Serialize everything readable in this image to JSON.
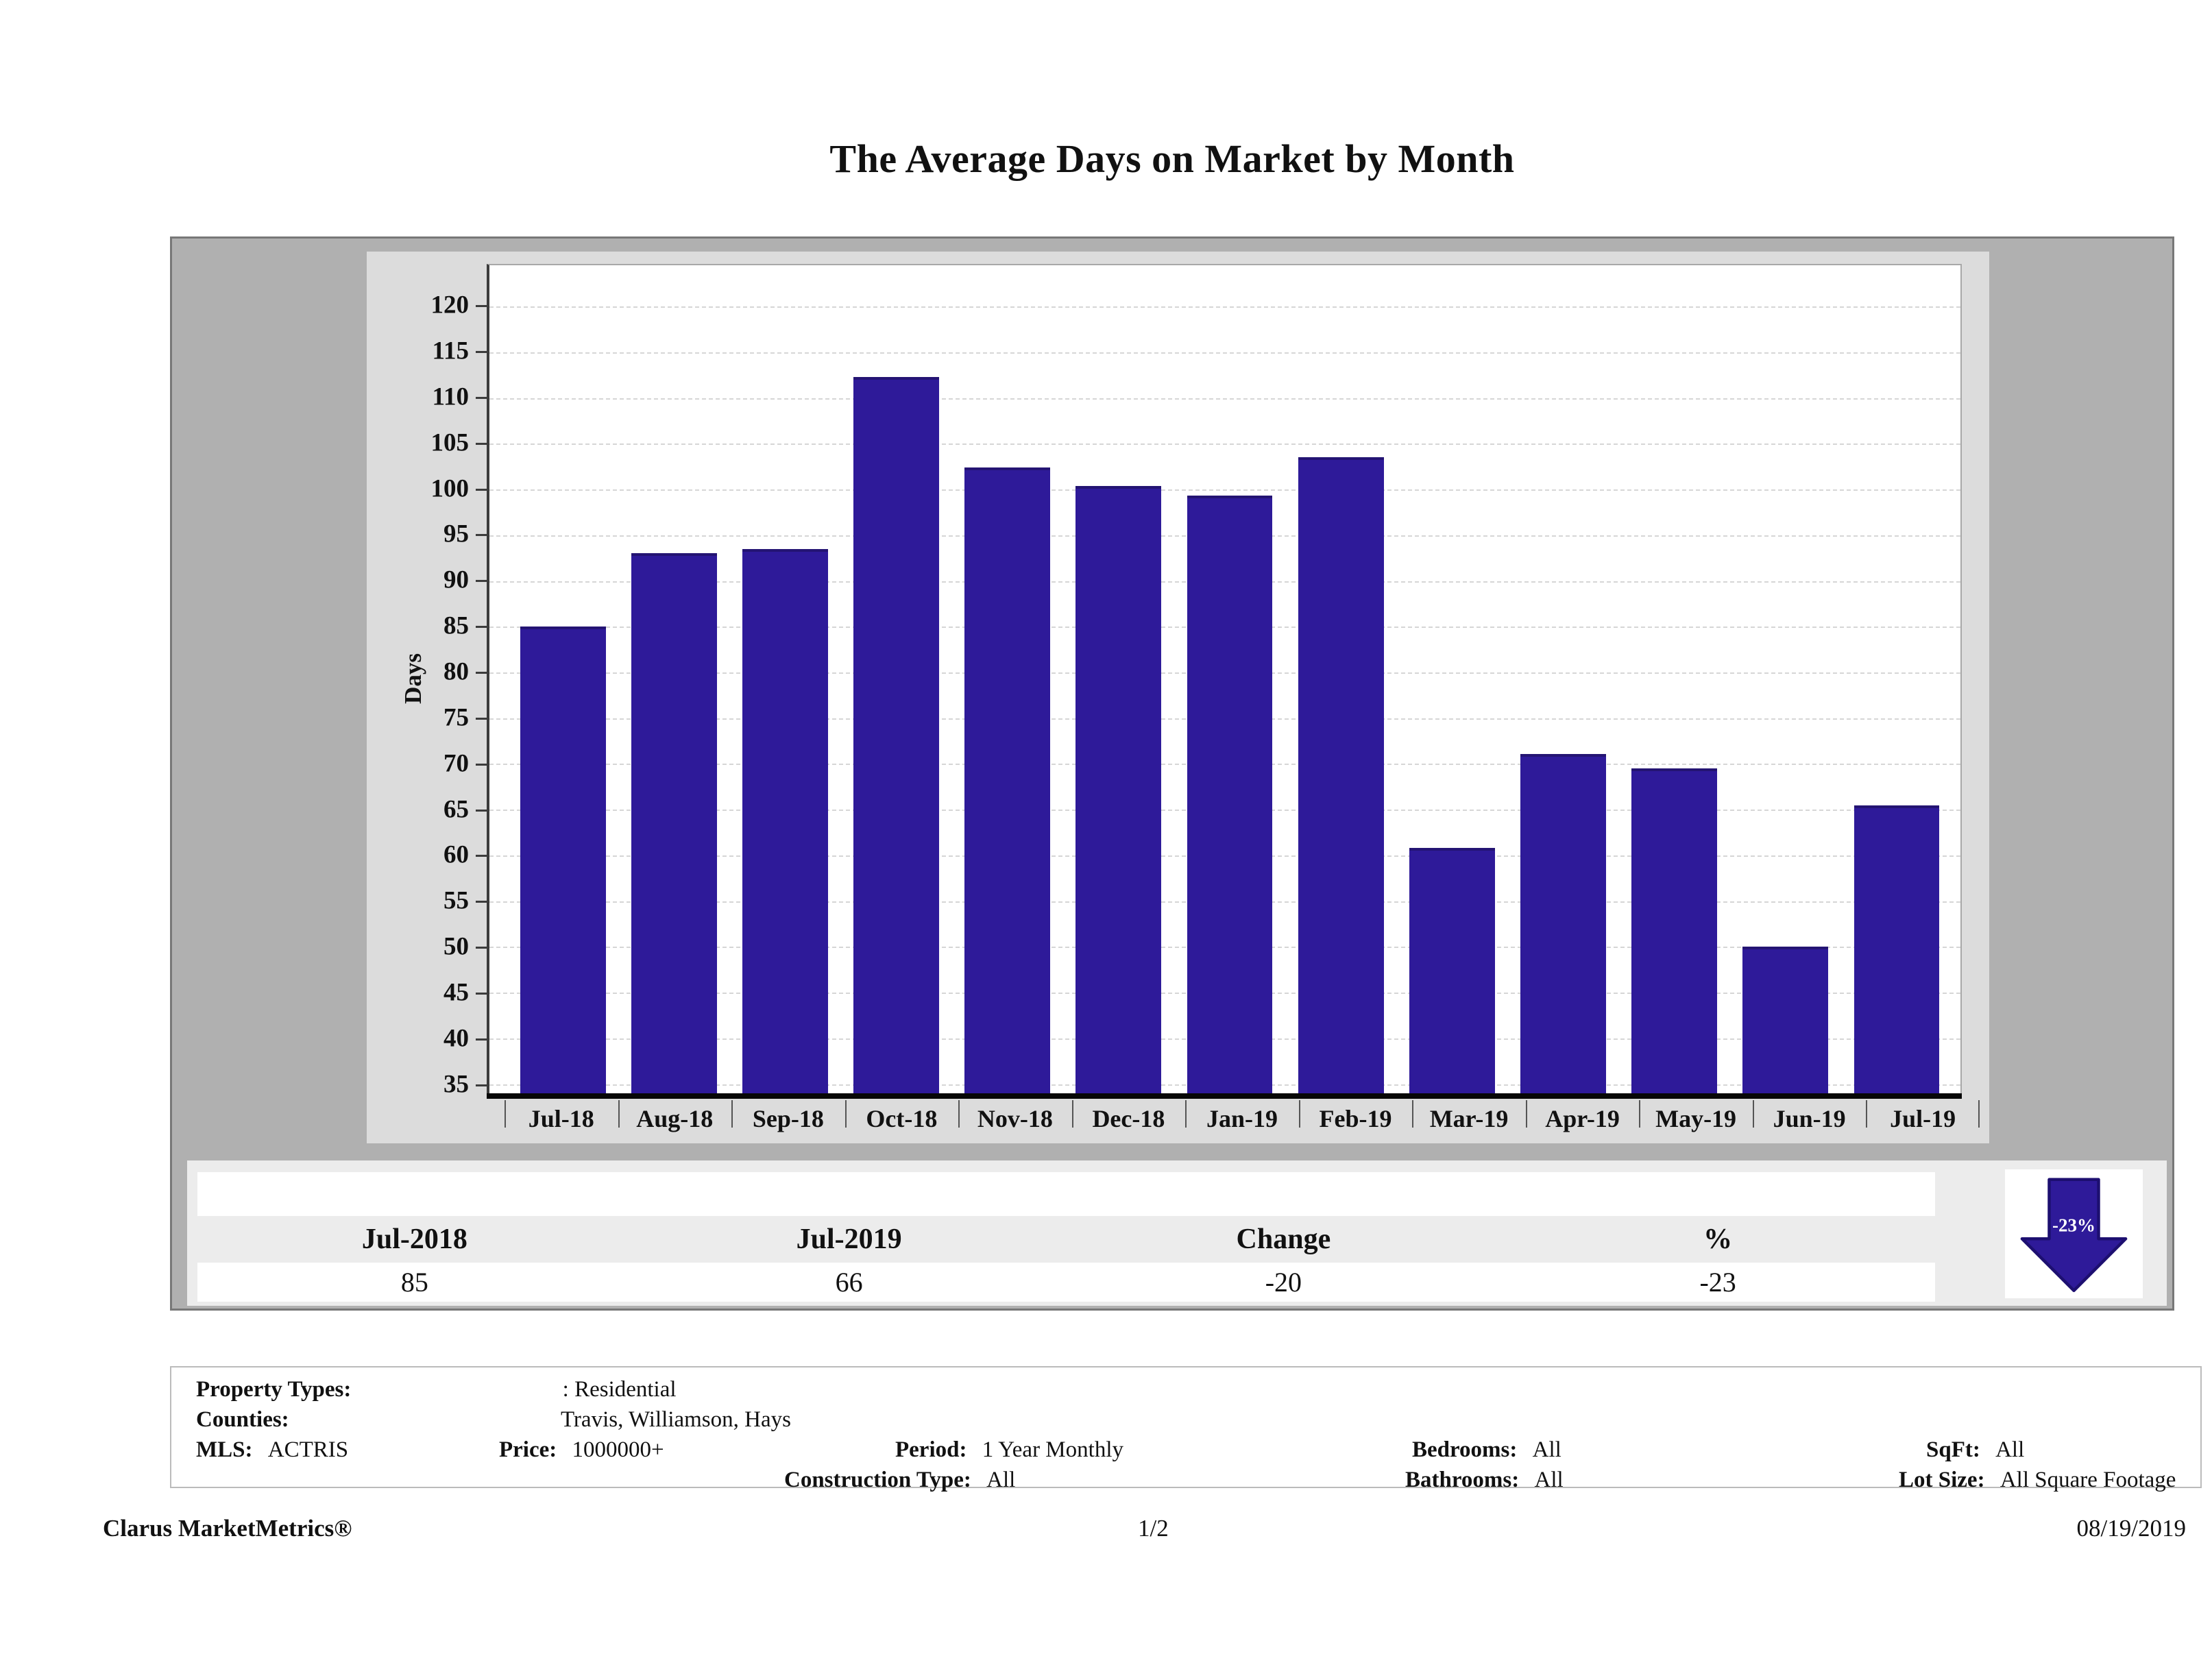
{
  "header": {
    "title": "The Average Days on Market by Month"
  },
  "chart_data": {
    "type": "bar",
    "title": "The Average Days on Market by Month",
    "xlabel": "",
    "ylabel": "Days",
    "categories": [
      "Jul-18",
      "Aug-18",
      "Sep-18",
      "Oct-18",
      "Nov-18",
      "Dec-18",
      "Jan-19",
      "Feb-19",
      "Mar-19",
      "Apr-19",
      "May-19",
      "Jun-19",
      "Jul-19"
    ],
    "values": [
      85,
      93,
      93.5,
      112.3,
      102.4,
      100.4,
      99.3,
      103.5,
      60.8,
      71.1,
      69.5,
      50,
      65.5
    ],
    "yticks": [
      35,
      40,
      45,
      50,
      55,
      60,
      65,
      70,
      75,
      80,
      85,
      90,
      95,
      100,
      105,
      110,
      115,
      120
    ],
    "axis_range": [
      34,
      124.5
    ],
    "ylim": [
      35,
      120
    ],
    "grid": "horizontal-dashed",
    "legend": "none"
  },
  "summary_table": {
    "headers": [
      "Jul-2018",
      "Jul-2019",
      "Change",
      "%"
    ],
    "values": [
      "85",
      "66",
      "-20",
      "-23"
    ]
  },
  "arrow_badge": {
    "label": "-23%",
    "direction": "down"
  },
  "filters": {
    "property_types_label": "Property Types:",
    "property_types_value": ": Residential",
    "counties_label": "Counties:",
    "counties_value": "Travis, Williamson, Hays",
    "mls_label": "MLS:",
    "mls_value": "ACTRIS",
    "price_label": "Price:",
    "price_value": "1000000+",
    "period_label": "Period:",
    "period_value": "1 Year Monthly",
    "construction_label": "Construction Type:",
    "construction_value": "All",
    "bedrooms_label": "Bedrooms:",
    "bedrooms_value": "All",
    "bathrooms_label": "Bathrooms:",
    "bathrooms_value": "All",
    "sqft_label": "SqFt:",
    "sqft_value": "All",
    "lot_label": "Lot Size:",
    "lot_value": "All Square Footage"
  },
  "footer": {
    "brand": "Clarus MarketMetrics®",
    "page": "1/2",
    "date": "08/19/2019"
  },
  "colors": {
    "bar": "#2e1a99",
    "bar_edge": "#241473",
    "container_gray": "#b0b0b0",
    "panel_gray": "#dcdcdc",
    "strip_gray": "#ececec",
    "arrow": "#2e1a99",
    "arrow_outline": "#1d0f70"
  }
}
